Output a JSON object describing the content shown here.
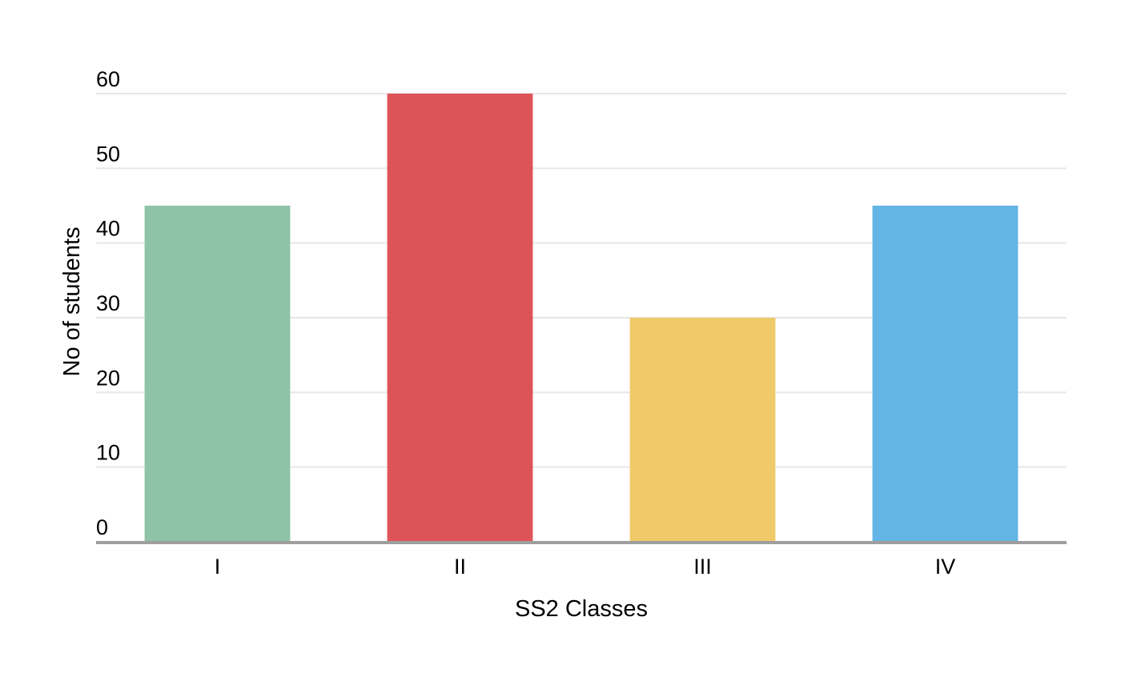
{
  "chart_data": {
    "type": "bar",
    "title": "",
    "xlabel": "SS2 Classes",
    "ylabel": "No of students",
    "categories": [
      "I",
      "II",
      "III",
      "IV"
    ],
    "values": [
      45,
      60,
      30,
      45
    ],
    "colors": [
      "#8fc3a7",
      "#de5357",
      "#f0ca68",
      "#62b5e5"
    ],
    "ylim": [
      0,
      60
    ],
    "yticks": [
      0,
      10,
      20,
      30,
      40,
      50,
      60
    ],
    "ytick_labels": [
      "0",
      "10",
      "20",
      "30",
      "40",
      "50",
      "60"
    ],
    "grid": true,
    "legend": "none",
    "gridline_color": "#e6e6e6",
    "baseline_color": "#9e9e9e"
  }
}
